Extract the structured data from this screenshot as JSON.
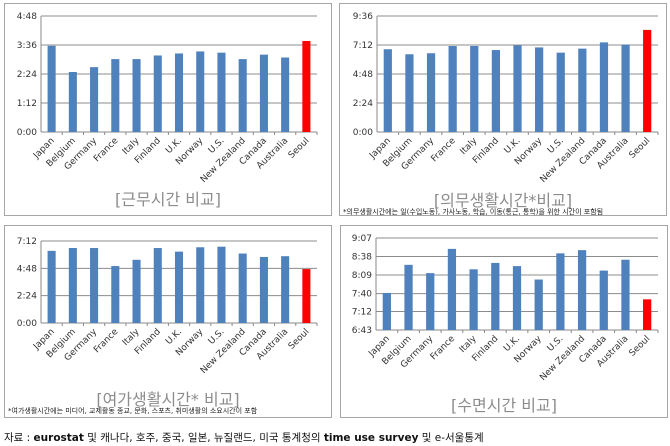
{
  "chart_data": [
    {
      "type": "bar",
      "title": "[근무시간 비교]",
      "note": "",
      "unit": "minutes",
      "categories": [
        "Japan",
        "Belgium",
        "Germany",
        "France",
        "Italy",
        "Finland",
        "U.K.",
        "Norway",
        "U.S.",
        "New Zealand",
        "Canada",
        "Australia",
        "Seoul"
      ],
      "values": [
        214,
        149,
        161,
        181,
        181,
        190,
        195,
        200,
        197,
        181,
        192,
        185,
        226
      ],
      "highlight": "Seoul",
      "yticks": [
        0,
        72,
        144,
        216,
        288
      ],
      "ytick_labels": [
        "0:00",
        "1:12",
        "2:24",
        "3:36",
        "4:48"
      ],
      "ylim": [
        0,
        288
      ]
    },
    {
      "type": "bar",
      "title": "[의무생활시간*비교]",
      "note": "*의무생활시간에는 일(수입노동), 가사노동, 학습, 이동(통근, 통학)을 위한 시간이 포함됨",
      "unit": "minutes",
      "categories": [
        "Japan",
        "Belgium",
        "Germany",
        "France",
        "Italy",
        "Finland",
        "U.K.",
        "Norway",
        "U.S.",
        "New Zealand",
        "Canada",
        "Australia",
        "Seoul"
      ],
      "values": [
        411,
        386,
        391,
        427,
        427,
        407,
        430,
        420,
        394,
        414,
        445,
        434,
        507
      ],
      "highlight": "Seoul",
      "yticks": [
        0,
        144,
        288,
        432,
        576
      ],
      "ytick_labels": [
        "0:00",
        "2:24",
        "4:48",
        "7:12",
        "9:36"
      ],
      "ylim": [
        0,
        576
      ]
    },
    {
      "type": "bar",
      "title": "[여가생활시간* 비교]",
      "note": "*여가생활시간에는 미디어, 교제활동 종교, 문화, 스포츠, 취미생활의 소요시간이 포함",
      "unit": "minutes",
      "categories": [
        "Japan",
        "Belgium",
        "Germany",
        "France",
        "Italy",
        "Finland",
        "U.K.",
        "Norway",
        "U.S.",
        "New Zealand",
        "Canada",
        "Australia",
        "Seoul"
      ],
      "values": [
        380,
        395,
        395,
        300,
        333,
        395,
        376,
        399,
        402,
        366,
        348,
        352,
        284
      ],
      "highlight": "Seoul",
      "yticks": [
        0,
        144,
        288,
        432
      ],
      "ytick_labels": [
        "0:00",
        "2:24",
        "4:48",
        "7:12"
      ],
      "ylim": [
        0,
        432
      ]
    },
    {
      "type": "bar",
      "title": "[수면시간 비교]",
      "note": "",
      "unit": "minutes",
      "categories": [
        "Japan",
        "Belgium",
        "Germany",
        "France",
        "Italy",
        "Finland",
        "U.K.",
        "Norway",
        "U.S.",
        "New Zealand",
        "Canada",
        "Australia",
        "Seoul"
      ],
      "values": [
        461,
        505,
        492,
        530,
        498,
        508,
        503,
        482,
        523,
        528,
        496,
        513,
        451
      ],
      "highlight": "Seoul",
      "yticks": [
        403,
        432,
        460,
        489,
        518,
        547
      ],
      "ytick_labels": [
        "6:43",
        "7:12",
        "7:40",
        "8:09",
        "8:38",
        "9:07"
      ],
      "ylim": [
        403,
        547
      ]
    }
  ],
  "colors": {
    "bar": "#4f81bd",
    "highlight": "#ff0000",
    "grid": "#8c8c8c"
  },
  "footer": {
    "prefix": "자료 : ",
    "bold1": "eurostat",
    "mid": " 및 캐나다, 호주, 중국, 일본, 뉴질랜드, 미국 통계청의 ",
    "bold2": "time use survey",
    "suffix": " 및 e-서울통계"
  }
}
